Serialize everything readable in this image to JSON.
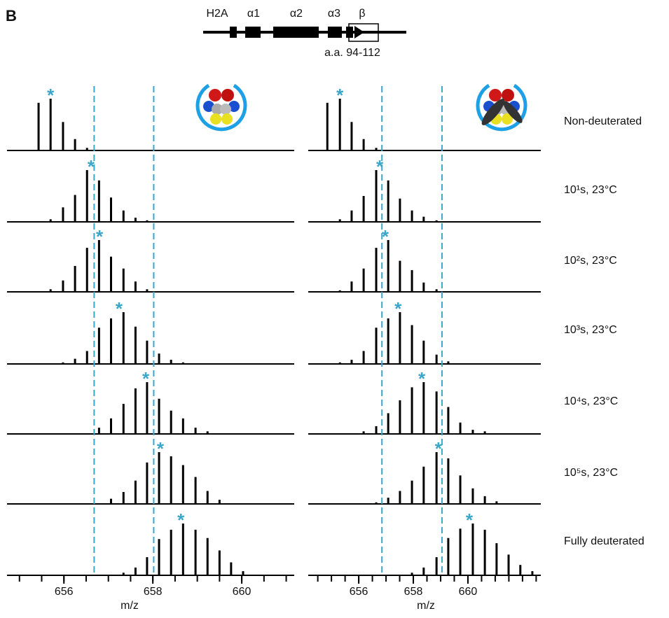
{
  "panel_label": "B",
  "gene_map": {
    "gene": "H2A",
    "elements": [
      "α1",
      "α2",
      "α3",
      "β"
    ],
    "region": "a.a. 94-112"
  },
  "row_labels": [
    "Non-deuterated",
    "10¹s, 23°C",
    "10²s, 23°C",
    "10³s, 23°C",
    "10⁴s, 23°C",
    "10⁵s, 23°C",
    "Fully deuterated"
  ],
  "chart_data": [
    {
      "type": "stick",
      "x_label": "m/z",
      "xlim": [
        654.72,
        661.18
      ],
      "xticks": [
        656,
        658,
        660
      ],
      "xminor": [
        655,
        655.5,
        656,
        656.5,
        657,
        657.5,
        658,
        658.5,
        659,
        659.5,
        660,
        660.5,
        661
      ],
      "color": "#000000",
      "marker": "*",
      "marker_color": "#3aa6c9",
      "reference_lines": {
        "values": [
          656.68,
          658.02
        ],
        "color": "#3aa6c9"
      },
      "spectra": [
        {
          "x": [
            655.43,
            655.7,
            655.98,
            656.25,
            656.52
          ],
          "values": [
            92,
            100,
            55,
            22,
            5
          ],
          "marker_x": 655.7
        },
        {
          "x": [
            655.7,
            655.98,
            656.25,
            656.52,
            656.79,
            657.06,
            657.34,
            657.61,
            657.87
          ],
          "values": [
            5,
            28,
            52,
            100,
            80,
            47,
            22,
            8,
            3
          ],
          "marker_x": 656.61
        },
        {
          "x": [
            655.7,
            655.98,
            656.25,
            656.52,
            656.79,
            657.06,
            657.34,
            657.61,
            657.87
          ],
          "values": [
            5,
            22,
            50,
            85,
            100,
            68,
            45,
            20,
            5
          ],
          "marker_x": 656.8
        },
        {
          "x": [
            655.98,
            656.25,
            656.52,
            656.79,
            657.06,
            657.34,
            657.61,
            657.87,
            658.14,
            658.41,
            658.68
          ],
          "values": [
            3,
            10,
            25,
            70,
            88,
            100,
            72,
            45,
            20,
            8,
            3
          ],
          "marker_x": 657.24
        },
        {
          "x": [
            656.79,
            657.06,
            657.34,
            657.61,
            657.87,
            658.14,
            658.41,
            658.68,
            658.96,
            659.23
          ],
          "values": [
            12,
            30,
            58,
            88,
            100,
            68,
            45,
            30,
            12,
            5
          ],
          "marker_x": 657.84
        },
        {
          "x": [
            657.06,
            657.34,
            657.61,
            657.87,
            658.14,
            658.41,
            658.68,
            658.96,
            659.23,
            659.5
          ],
          "values": [
            10,
            23,
            45,
            80,
            100,
            92,
            75,
            52,
            25,
            8
          ],
          "marker_x": 658.17
        },
        {
          "x": [
            657.34,
            657.61,
            657.87,
            658.14,
            658.41,
            658.68,
            658.96,
            659.23,
            659.5,
            659.76,
            660.03
          ],
          "values": [
            5,
            15,
            35,
            70,
            88,
            100,
            88,
            72,
            48,
            25,
            8
          ],
          "marker_x": 658.63
        }
      ]
    },
    {
      "type": "stick",
      "x_label": "m/z",
      "xlim": [
        654.15,
        662.67
      ],
      "xticks": [
        656,
        658,
        660
      ],
      "xminor": [
        654.5,
        655,
        655.5,
        656,
        656.5,
        657,
        657.5,
        658,
        658.5,
        659,
        659.5,
        660,
        660.5,
        661,
        661.5,
        662,
        662.5
      ],
      "color": "#000000",
      "marker": "*",
      "marker_color": "#3aa6c9",
      "reference_lines": {
        "values": [
          656.85,
          659.05
        ],
        "color": "#3aa6c9"
      },
      "spectra": [
        {
          "x": [
            654.85,
            655.31,
            655.74,
            656.18,
            656.64
          ],
          "values": [
            92,
            100,
            55,
            22,
            5
          ],
          "marker_x": 655.31
        },
        {
          "x": [
            655.31,
            655.74,
            656.18,
            656.64,
            657.08,
            657.51,
            657.95,
            658.38,
            658.85
          ],
          "values": [
            5,
            22,
            50,
            100,
            80,
            45,
            22,
            10,
            3
          ],
          "marker_x": 656.77
        },
        {
          "x": [
            655.31,
            655.74,
            656.18,
            656.64,
            657.08,
            657.51,
            657.95,
            658.38,
            658.85
          ],
          "values": [
            3,
            20,
            45,
            85,
            100,
            60,
            42,
            18,
            5
          ],
          "marker_x": 656.97
        },
        {
          "x": [
            655.31,
            655.74,
            656.18,
            656.64,
            657.08,
            657.51,
            657.95,
            658.38,
            658.85,
            659.28
          ],
          "values": [
            3,
            8,
            25,
            70,
            88,
            100,
            75,
            45,
            18,
            5
          ],
          "marker_x": 657.44
        },
        {
          "x": [
            656.18,
            656.64,
            657.08,
            657.51,
            657.95,
            658.38,
            658.85,
            659.28,
            659.72,
            660.18,
            660.62
          ],
          "values": [
            5,
            15,
            40,
            65,
            90,
            100,
            82,
            52,
            22,
            8,
            5
          ],
          "marker_x": 658.31
        },
        {
          "x": [
            656.64,
            657.08,
            657.51,
            657.95,
            658.38,
            658.85,
            659.28,
            659.72,
            660.18,
            660.62,
            661.05
          ],
          "values": [
            3,
            12,
            25,
            45,
            72,
            100,
            88,
            55,
            30,
            15,
            5
          ],
          "marker_x": 658.92
        },
        {
          "x": [
            657.95,
            658.38,
            658.85,
            659.28,
            659.72,
            660.18,
            660.62,
            661.05,
            661.49,
            661.92,
            662.36
          ],
          "values": [
            5,
            15,
            35,
            72,
            90,
            100,
            88,
            62,
            40,
            20,
            8
          ],
          "marker_x": 660.05
        }
      ]
    }
  ]
}
